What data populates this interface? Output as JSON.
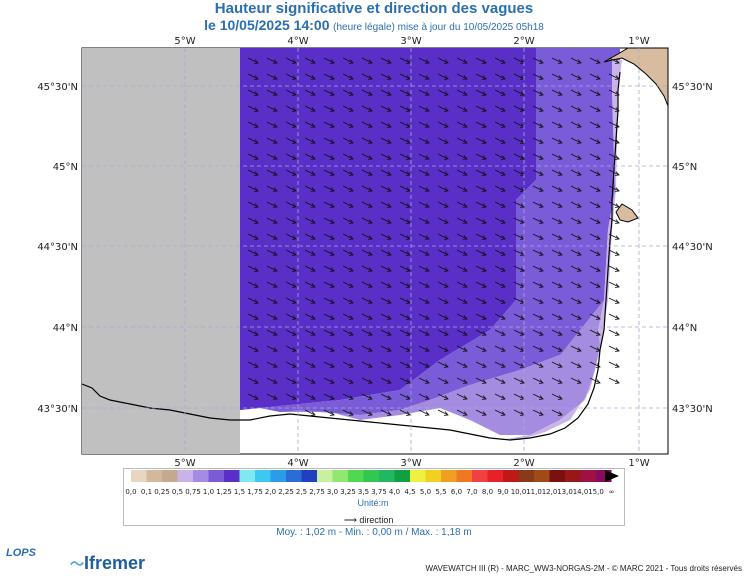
{
  "header": {
    "title": "Hauteur significative et direction des vagues",
    "date_label": "le 10/05/2025 14:00",
    "time_note": "(heure légale) mise à jour du 10/05/2025 05h18"
  },
  "axes": {
    "top_lon_labels": [
      "5°W",
      "4°W",
      "3°W",
      "2°W",
      "1°W"
    ],
    "bottom_lon_labels": [
      "5°W",
      "4°W",
      "3°W",
      "2°W",
      "1°W"
    ],
    "left_lat_labels": [
      "45°30'N",
      "45°N",
      "44°30'N",
      "44°N",
      "43°30'N"
    ],
    "right_lat_labels": [
      "45°30'N",
      "45°N",
      "44°30'N",
      "44°N",
      "43°30'N"
    ]
  },
  "legend": {
    "values": [
      "0,0",
      "0,1",
      "0,25",
      "0,5",
      "0,75",
      "1,0",
      "1,25",
      "1,5",
      "1,75",
      "2,0",
      "2,25",
      "2,5",
      "2,75",
      "3,0",
      "3,25",
      "3,5",
      "3,75",
      "4,0",
      "4,5",
      "5,0",
      "5,5",
      "6,0",
      "7,0",
      "8,0",
      "9,0",
      "10,0",
      "11,0",
      "12,0",
      "13,0",
      "14,0",
      "15,0",
      "∞"
    ],
    "colors": [
      "#e8d6c2",
      "#d4b89c",
      "#c4a890",
      "#c8b4e8",
      "#a48ce0",
      "#7a5cd8",
      "#5a2fc8",
      "#7fe8f0",
      "#3cc8f0",
      "#2a9ce8",
      "#2a6cd8",
      "#2040c0",
      "#c8f0a0",
      "#90e870",
      "#50d850",
      "#30c850",
      "#20b860",
      "#10a040",
      "#f0f040",
      "#f0d020",
      "#f0a020",
      "#f07820",
      "#f04040",
      "#e82028",
      "#c01818",
      "#8a3a1a",
      "#a04a18",
      "#7a1010",
      "#981818",
      "#a01040",
      "#880a60"
    ],
    "unit": "Unité:m",
    "direction_label": "direction"
  },
  "stats": {
    "text": "Moy. : 1,02 m   -   Min. : 0,00 m / Max. : 1,18 m"
  },
  "map": {
    "land_color": "#d8bca0",
    "nodata_color": "#c0c0c0",
    "wave_main_color": "#5a2fc8",
    "wave_mid_color": "#7a5cd8",
    "wave_low_color": "#a48ce0",
    "wave_lowest_color": "#c8b4e8",
    "wave_direction": "northwest-to-southeast"
  },
  "branding": {
    "logo_left": "LOPS",
    "logo_right": "Ifremer",
    "footer": "WAVEWATCH III (R) - MARC_WW3-NORGAS-2M - © MARC 2021 - Tous droits réservés"
  }
}
